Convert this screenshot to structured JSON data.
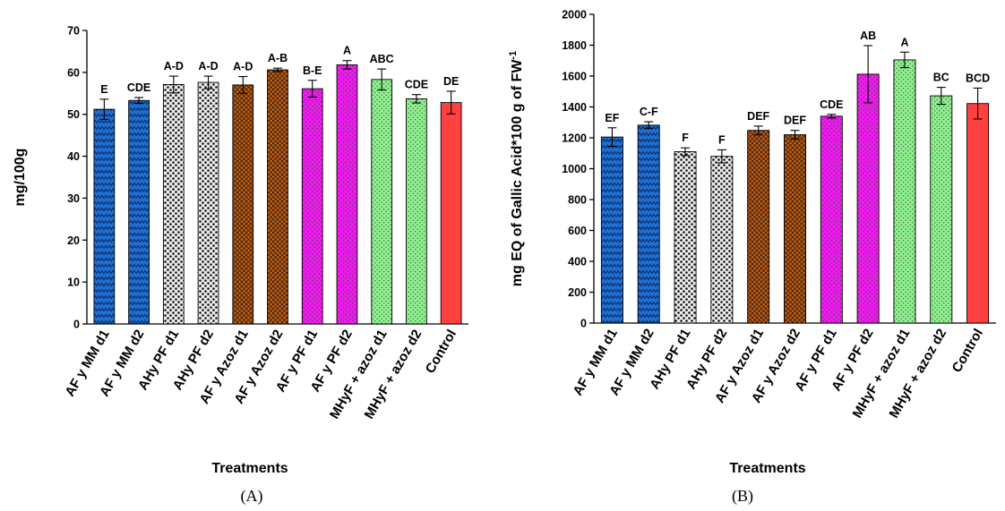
{
  "chart_data": [
    {
      "type": "bar",
      "panel_label": "(A)",
      "xlabel": "Treatments",
      "ylabel": "mg/100g",
      "ylim": [
        0,
        70
      ],
      "yticks": [
        0,
        10,
        20,
        30,
        40,
        50,
        60,
        70
      ],
      "grid": false,
      "categories": [
        "AF y MM d1",
        "AF y MM d2",
        "AHy PF d1",
        "AHy PF d2",
        "AF y Azoz d1",
        "AF y Azoz d2",
        "AF y PF d1",
        "AF y PF d2",
        "MHyF + azoz d1",
        "MHyF + azoz d2",
        "Control"
      ],
      "values": [
        51.2,
        53.3,
        57.1,
        57.6,
        57.0,
        60.6,
        56.1,
        61.8,
        58.3,
        53.7,
        52.8
      ],
      "errors": [
        2.4,
        0.7,
        2.0,
        1.5,
        2.0,
        0.4,
        2.0,
        1.0,
        2.5,
        1.0,
        2.7
      ],
      "letters": [
        "E",
        "CDE",
        "A-D",
        "A-D",
        "A-D",
        "A-B",
        "B-E",
        "A",
        "ABC",
        "CDE",
        "DE"
      ],
      "colors": [
        "#1f6fd1",
        "#1f6fd1",
        "#e8e8e8",
        "#e8e8e8",
        "#c0621a",
        "#c0621a",
        "#ee1cee",
        "#ee1cee",
        "#8ef08e",
        "#8ef08e",
        "#ff4040"
      ],
      "patterns": [
        "zigzag",
        "zigzag",
        "dots",
        "dots",
        "crosshatch",
        "crosshatch",
        "fine-dots",
        "fine-dots",
        "fine-dots",
        "fine-dots",
        "solid"
      ]
    },
    {
      "type": "bar",
      "panel_label": "(B)",
      "xlabel": "Treatments",
      "ylabel": "mg EQ of Gallic Acid*100 g of FW",
      "ylabel_superscript": "-1",
      "ylim": [
        0,
        2000
      ],
      "yticks": [
        0,
        200,
        400,
        600,
        800,
        1000,
        1200,
        1400,
        1600,
        1800,
        2000
      ],
      "grid": false,
      "categories": [
        "AF y MM d1",
        "AF y MM d2",
        "AHy PF d1",
        "AHy PF d2",
        "AF y Azoz d1",
        "AF y Azoz d2",
        "AF y PF d1",
        "AF y PF d2",
        "MHyF + azoz d1",
        "MHyF + azoz d2",
        "Control"
      ],
      "values": [
        1205,
        1282,
        1110,
        1080,
        1248,
        1220,
        1340,
        1612,
        1705,
        1472,
        1422
      ],
      "errors": [
        60,
        22,
        25,
        42,
        28,
        28,
        12,
        185,
        50,
        55,
        100
      ],
      "letters": [
        "EF",
        "C-F",
        "F",
        "F",
        "DEF",
        "DEF",
        "CDE",
        "AB",
        "A",
        "BC",
        "BCD"
      ],
      "colors": [
        "#1f6fd1",
        "#1f6fd1",
        "#e8e8e8",
        "#e8e8e8",
        "#c0621a",
        "#c0621a",
        "#ee1cee",
        "#ee1cee",
        "#8ef08e",
        "#8ef08e",
        "#ff4040"
      ],
      "patterns": [
        "zigzag",
        "zigzag",
        "dots",
        "dots",
        "crosshatch",
        "crosshatch",
        "fine-dots",
        "fine-dots",
        "fine-dots",
        "fine-dots",
        "solid"
      ]
    }
  ]
}
